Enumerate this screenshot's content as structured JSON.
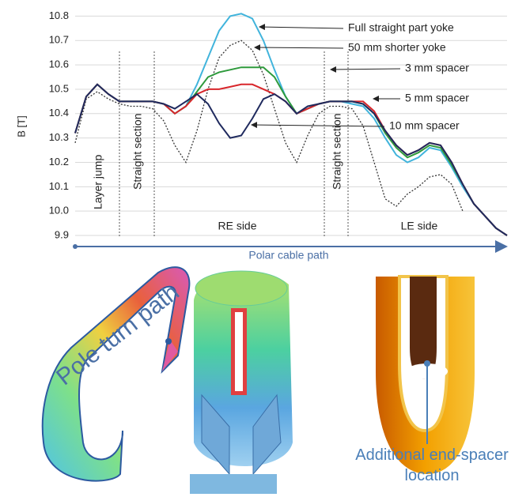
{
  "chart_data": {
    "type": "line",
    "y_label": "B [T]",
    "x_label": "Polar cable path",
    "categories": [
      null,
      null,
      null,
      null,
      null,
      null,
      null,
      null,
      null,
      null,
      null,
      null,
      null,
      null,
      null,
      null,
      null,
      null,
      null,
      null,
      null,
      null,
      null,
      null,
      null,
      null,
      null,
      null,
      null,
      null,
      null,
      null,
      null,
      null,
      null,
      null,
      null,
      null,
      null,
      null
    ],
    "series": [
      {
        "name": "Full straight part yoke",
        "color": "#41b4dc",
        "dash": false,
        "values": [
          10.32,
          10.47,
          10.52,
          10.48,
          10.45,
          10.45,
          10.45,
          10.45,
          10.44,
          10.4,
          10.43,
          10.52,
          10.63,
          10.74,
          10.8,
          10.81,
          10.79,
          10.7,
          10.58,
          10.47,
          10.4,
          10.42,
          10.44,
          10.45,
          10.45,
          10.44,
          10.43,
          10.38,
          10.3,
          10.23,
          10.2,
          10.22,
          10.26,
          10.25,
          10.18,
          10.1,
          10.03,
          9.98,
          9.93,
          9.9
        ]
      },
      {
        "name": "50 mm shorter yoke",
        "color": "#333333",
        "dash": true,
        "values": [
          10.28,
          10.46,
          10.49,
          10.46,
          10.44,
          10.43,
          10.43,
          10.42,
          10.37,
          10.27,
          10.2,
          10.33,
          10.5,
          10.63,
          10.68,
          10.7,
          10.66,
          10.56,
          10.42,
          10.28,
          10.2,
          10.31,
          10.4,
          10.43,
          10.43,
          10.42,
          10.35,
          10.2,
          10.05,
          10.02,
          10.07,
          10.1,
          10.14,
          10.15,
          10.11,
          10.0,
          null,
          null,
          null,
          null
        ]
      },
      {
        "name": "3 mm spacer",
        "color": "#2e9a3c",
        "dash": false,
        "values": [
          10.32,
          10.47,
          10.52,
          10.48,
          10.45,
          10.45,
          10.45,
          10.45,
          10.44,
          10.4,
          10.43,
          10.49,
          10.55,
          10.57,
          10.58,
          10.59,
          10.59,
          10.59,
          10.55,
          10.47,
          10.4,
          10.42,
          10.44,
          10.45,
          10.45,
          10.45,
          10.44,
          10.4,
          10.32,
          10.26,
          10.22,
          10.24,
          10.27,
          10.26,
          10.19,
          10.11,
          10.03,
          9.98,
          9.93,
          9.9
        ]
      },
      {
        "name": "5 mm spacer",
        "color": "#d8262b",
        "dash": false,
        "values": [
          10.32,
          10.47,
          10.52,
          10.48,
          10.45,
          10.45,
          10.45,
          10.45,
          10.44,
          10.4,
          10.43,
          10.48,
          10.5,
          10.5,
          10.51,
          10.52,
          10.52,
          10.5,
          10.48,
          10.45,
          10.4,
          10.42,
          10.44,
          10.45,
          10.45,
          10.45,
          10.45,
          10.41,
          10.33,
          10.27,
          10.23,
          10.25,
          10.28,
          10.27,
          10.2,
          10.11,
          10.03,
          9.98,
          9.93,
          9.9
        ]
      },
      {
        "name": "10 mm spacer",
        "color": "#1f2a5e",
        "dash": false,
        "values": [
          10.32,
          10.47,
          10.52,
          10.48,
          10.45,
          10.45,
          10.45,
          10.45,
          10.44,
          10.42,
          10.45,
          10.48,
          10.44,
          10.36,
          10.3,
          10.31,
          10.38,
          10.46,
          10.48,
          10.45,
          10.4,
          10.43,
          10.44,
          10.45,
          10.45,
          10.45,
          10.44,
          10.4,
          10.33,
          10.27,
          10.23,
          10.25,
          10.28,
          10.27,
          10.2,
          10.11,
          10.03,
          9.98,
          9.93,
          9.9
        ]
      }
    ],
    "regions": [
      "Layer jump",
      "Straight section",
      "RE side",
      "Straight section",
      "LE side"
    ],
    "ylim": [
      9.9,
      10.85
    ],
    "yticks": [
      9.9,
      {
        "value": 10,
        "label": "10.0"
      },
      10.1,
      10.2,
      10.3,
      10.4,
      10.5,
      10.6,
      10.7,
      10.8
    ],
    "grid": true
  },
  "illustrations": {
    "pole_turn_label": "Pole turn path",
    "spacer_label": "Additional end-spacer location"
  }
}
